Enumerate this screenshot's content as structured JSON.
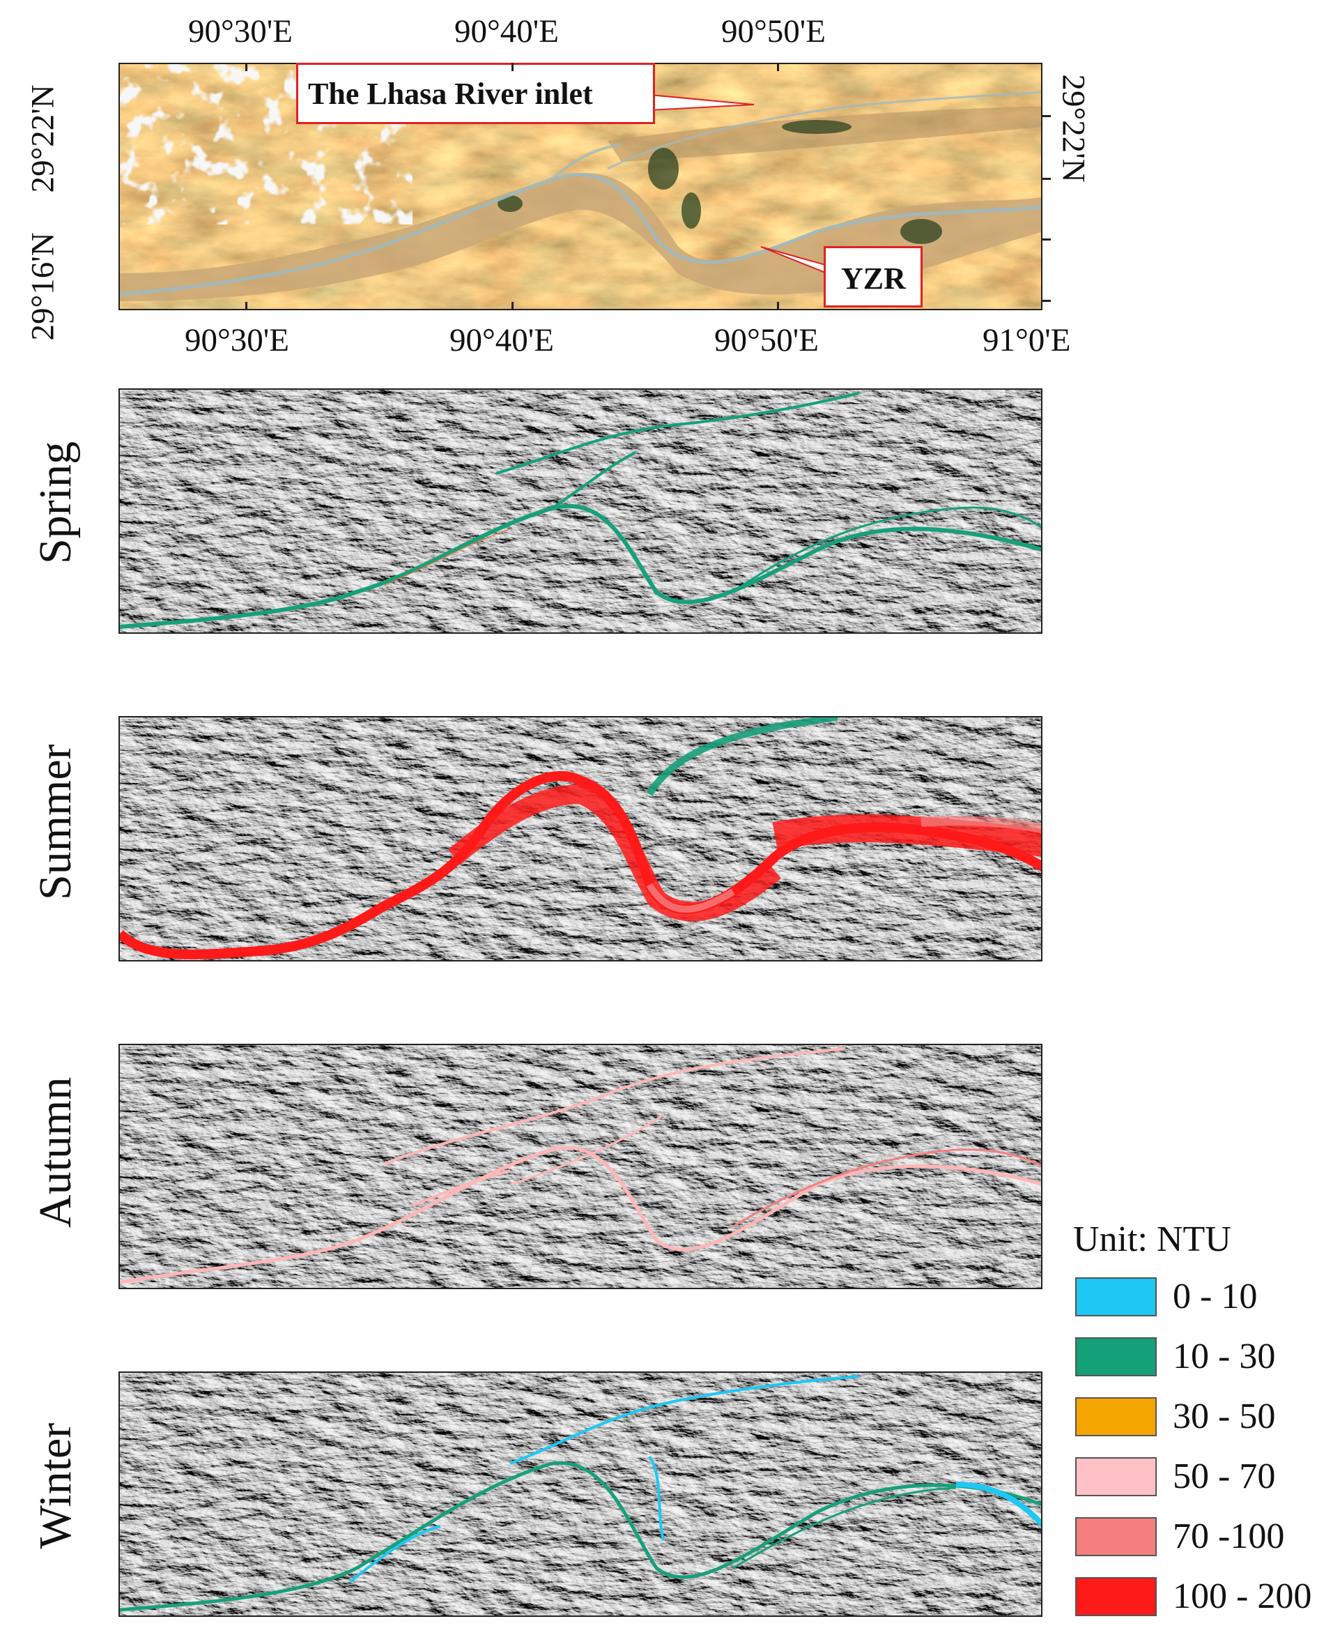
{
  "top_map": {
    "lon_ticks_top": [
      "90°30'E",
      "90°40'E",
      "90°50'E"
    ],
    "lon_ticks_bottom": [
      "90°30'E",
      "90°40'E",
      "90°50'E",
      "91°0'E"
    ],
    "lat_ticks_left": [
      "29°22'N",
      "29°16'N"
    ],
    "lat_ticks_right": [
      "29°22'N"
    ],
    "callouts": {
      "lhasa_inlet": "The Lhasa River inlet",
      "yzr": "YZR"
    }
  },
  "panels": [
    {
      "season": "Spring",
      "dominant_class": "10 - 30",
      "river_color": "#17a07a"
    },
    {
      "season": "Summer",
      "dominant_class": "100 - 200",
      "river_color": "#ff1a1a"
    },
    {
      "season": "Autumn",
      "dominant_class": "50 - 70",
      "river_color": "#ffb6b6"
    },
    {
      "season": "Winter",
      "dominant_class": "10 - 30",
      "river_color": "#17a07a"
    }
  ],
  "legend": {
    "title": "Unit: NTU",
    "items": [
      {
        "label": "0 - 10",
        "color": "#1ec8f5"
      },
      {
        "label": "10 - 30",
        "color": "#14a079"
      },
      {
        "label": "30 - 50",
        "color": "#f5a500"
      },
      {
        "label": "50 - 70",
        "color": "#ffc0c6"
      },
      {
        "label": "70 -100",
        "color": "#f47f7f"
      },
      {
        "label": "100 - 200",
        "color": "#ff1a1a"
      }
    ]
  }
}
